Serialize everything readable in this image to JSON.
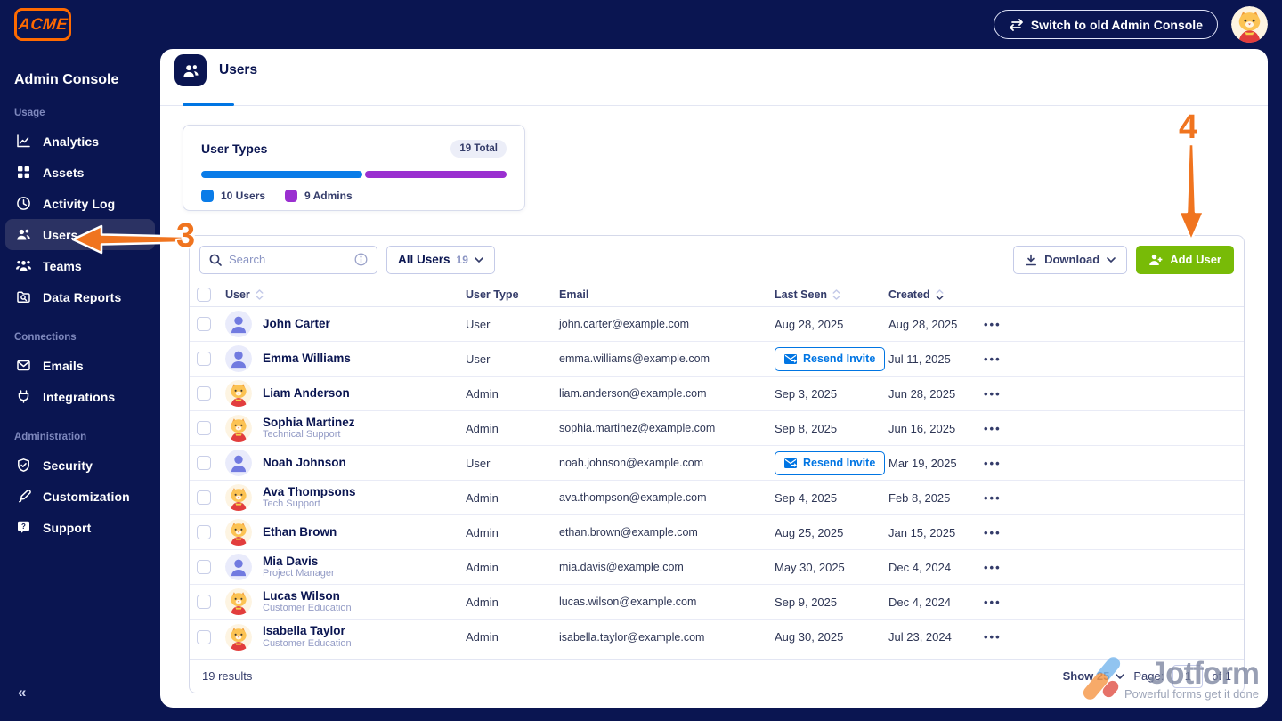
{
  "topbar": {
    "logo": "ACME",
    "switch_button_label": "Switch to old Admin Console"
  },
  "sidebar": {
    "title": "Admin Console",
    "collapse_icon": "«",
    "sections": [
      {
        "label": "Usage",
        "items": [
          {
            "label": "Analytics",
            "icon": "analytics-icon",
            "active": false
          },
          {
            "label": "Assets",
            "icon": "assets-icon",
            "active": false
          },
          {
            "label": "Activity Log",
            "icon": "activity-log-icon",
            "active": false
          },
          {
            "label": "Users",
            "icon": "users-icon",
            "active": true
          },
          {
            "label": "Teams",
            "icon": "teams-icon",
            "active": false
          },
          {
            "label": "Data Reports",
            "icon": "data-reports-icon",
            "active": false
          }
        ]
      },
      {
        "label": "Connections",
        "items": [
          {
            "label": "Emails",
            "icon": "emails-icon",
            "active": false
          },
          {
            "label": "Integrations",
            "icon": "integrations-icon",
            "active": false
          }
        ]
      },
      {
        "label": "Administration",
        "items": [
          {
            "label": "Security",
            "icon": "security-icon",
            "active": false
          },
          {
            "label": "Customization",
            "icon": "customization-icon",
            "active": false
          },
          {
            "label": "Support",
            "icon": "support-icon",
            "active": false
          }
        ]
      }
    ]
  },
  "page": {
    "title": "Users"
  },
  "user_types_card": {
    "title": "User Types",
    "total_badge": "19 Total",
    "bar": {
      "users_value": 10,
      "admins_value": 9,
      "users_color": "#0a7ce8",
      "admins_color": "#9a2fd0"
    },
    "legend": [
      {
        "label": "10 Users",
        "color": "#0a7ce8"
      },
      {
        "label": "9 Admins",
        "color": "#9a2fd0"
      }
    ]
  },
  "toolbar": {
    "search_placeholder": "Search",
    "filter_label": "All Users",
    "filter_count": "19",
    "download_label": "Download",
    "add_user_label": "Add User"
  },
  "table": {
    "columns": [
      {
        "label": "User",
        "sortable": true,
        "sort": "none"
      },
      {
        "label": "User Type",
        "sortable": false,
        "sort": "none"
      },
      {
        "label": "Email",
        "sortable": false,
        "sort": "none"
      },
      {
        "label": "Last Seen",
        "sortable": true,
        "sort": "none"
      },
      {
        "label": "Created",
        "sortable": true,
        "sort": "desc"
      }
    ],
    "resend_label": "Resend Invite",
    "rows": [
      {
        "name": "John Carter",
        "subtitle": "",
        "avatar": "person",
        "type": "User",
        "email": "john.carter@example.com",
        "last_seen": "Aug 28, 2025",
        "resend": false,
        "created": "Aug 28, 2025"
      },
      {
        "name": "Emma Williams",
        "subtitle": "",
        "avatar": "person",
        "type": "User",
        "email": "emma.williams@example.com",
        "last_seen": "",
        "resend": true,
        "created": "Jul 11, 2025"
      },
      {
        "name": "Liam Anderson",
        "subtitle": "",
        "avatar": "cat",
        "type": "Admin",
        "email": "liam.anderson@example.com",
        "last_seen": "Sep 3, 2025",
        "resend": false,
        "created": "Jun 28, 2025"
      },
      {
        "name": "Sophia Martinez",
        "subtitle": "Technical Support",
        "avatar": "cat",
        "type": "Admin",
        "email": "sophia.martinez@example.com",
        "last_seen": "Sep 8, 2025",
        "resend": false,
        "created": "Jun 16, 2025"
      },
      {
        "name": "Noah Johnson",
        "subtitle": "",
        "avatar": "person",
        "type": "User",
        "email": "noah.johnson@example.com",
        "last_seen": "",
        "resend": true,
        "created": "Mar 19, 2025"
      },
      {
        "name": "Ava Thompsons",
        "subtitle": "Tech Support",
        "avatar": "cat",
        "type": "Admin",
        "email": "ava.thompson@example.com",
        "last_seen": "Sep 4, 2025",
        "resend": false,
        "created": "Feb 8, 2025"
      },
      {
        "name": "Ethan Brown",
        "subtitle": "",
        "avatar": "cat",
        "type": "Admin",
        "email": "ethan.brown@example.com",
        "last_seen": "Aug 25, 2025",
        "resend": false,
        "created": "Jan 15, 2025"
      },
      {
        "name": "Mia Davis",
        "subtitle": "Project Manager",
        "avatar": "person",
        "type": "Admin",
        "email": "mia.davis@example.com",
        "last_seen": "May 30, 2025",
        "resend": false,
        "created": "Dec 4, 2024"
      },
      {
        "name": "Lucas Wilson",
        "subtitle": "Customer Education",
        "avatar": "cat",
        "type": "Admin",
        "email": "lucas.wilson@example.com",
        "last_seen": "Sep 9, 2025",
        "resend": false,
        "created": "Dec 4, 2024"
      },
      {
        "name": "Isabella Taylor",
        "subtitle": "Customer Education",
        "avatar": "cat",
        "type": "Admin",
        "email": "isabella.taylor@example.com",
        "last_seen": "Aug 30, 2025",
        "resend": false,
        "created": "Jul 23, 2024"
      }
    ]
  },
  "pagination": {
    "results": "19 results",
    "show_label": "Show 25",
    "page_label": "Page:",
    "page_value": "1",
    "of_label": "of 1"
  },
  "watermark": {
    "brand": "Jotform",
    "tagline": "Powerful forms get it done"
  },
  "annotations": {
    "step_3": "3",
    "step_4": "4"
  },
  "colors": {
    "navy": "#0a1551",
    "blue": "#0075e3",
    "green": "#78bb07",
    "orange": "#f0741f",
    "purple": "#9a2fd0"
  }
}
